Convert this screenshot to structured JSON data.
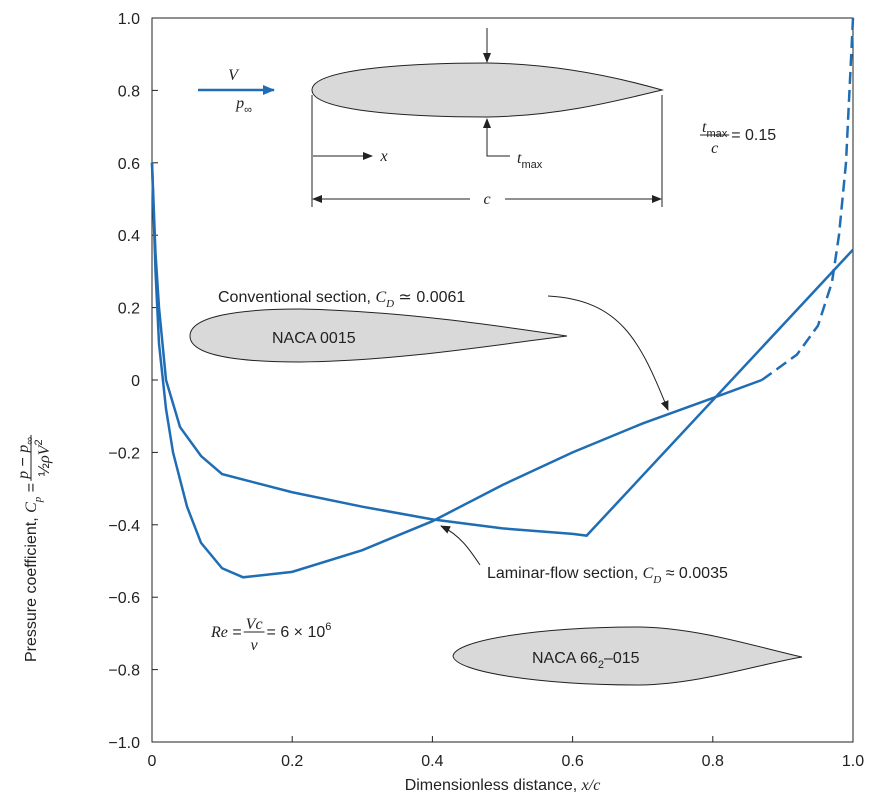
{
  "chart_data": {
    "type": "line",
    "xlabel": [
      {
        "t": "Dimensionless distance, "
      },
      {
        "t": "x/c",
        "style": "italic"
      }
    ],
    "ylabel": {
      "lhs": [
        {
          "t": "Pressure coefficient, "
        },
        {
          "t": "C",
          "style": "italic"
        },
        {
          "t": "p",
          "style": "italic sub"
        },
        {
          "t": " = "
        }
      ],
      "numerator": [
        {
          "t": "p",
          "style": "italic"
        },
        {
          "t": " − "
        },
        {
          "t": "p",
          "style": "italic"
        },
        {
          "t": "∞",
          "style": "sub"
        }
      ],
      "denominator": [
        {
          "t": "½"
        },
        {
          "t": "ρV",
          "style": "italic"
        },
        {
          "t": "2",
          "style": "sup"
        }
      ]
    },
    "xlim": [
      0,
      1
    ],
    "ylim": [
      -1,
      1
    ],
    "xticks": [
      0,
      0.2,
      0.4,
      0.6,
      0.8,
      {
        "value": 1,
        "label": "1.0"
      }
    ],
    "yticks": [
      {
        "value": 1,
        "label": "1.0"
      },
      0.8,
      0.6,
      0.4,
      0.2,
      0,
      {
        "value": -0.2,
        "label": "−0.2"
      },
      {
        "value": -0.4,
        "label": "−0.4"
      },
      {
        "value": -0.6,
        "label": "−0.6"
      },
      {
        "value": -0.8,
        "label": "−0.8"
      },
      {
        "value": -1,
        "label": "−1.0"
      }
    ],
    "series": [
      {
        "color": "#1f6db4",
        "line_style": "solid",
        "x": [
          0,
          0.005,
          0.01,
          0.02,
          0.03,
          0.05,
          0.07,
          0.1,
          0.13,
          0.2,
          0.3,
          0.4,
          0.5,
          0.6,
          0.7,
          0.8,
          0.87
        ],
        "values": [
          0.6,
          0.3,
          0.1,
          -0.08,
          -0.2,
          -0.35,
          -0.45,
          -0.52,
          -0.545,
          -0.53,
          -0.47,
          -0.39,
          -0.29,
          -0.2,
          -0.12,
          -0.05,
          0
        ]
      },
      {
        "color": "#1f6db4",
        "line_style": "dashed",
        "x": [
          0.87,
          0.92,
          0.95,
          0.97,
          0.98,
          0.99,
          1
        ],
        "values": [
          0,
          0.07,
          0.15,
          0.27,
          0.4,
          0.6,
          1
        ]
      },
      {
        "color": "#1f6db4",
        "line_style": "solid",
        "x": [
          0,
          0.005,
          0.01,
          0.02,
          0.04,
          0.07,
          0.1,
          0.2,
          0.3,
          0.4,
          0.5,
          0.6,
          0.62,
          1
        ],
        "values": [
          0.6,
          0.35,
          0.2,
          0,
          -0.13,
          -0.21,
          -0.26,
          -0.31,
          -0.35,
          -0.385,
          -0.41,
          -0.425,
          -0.43,
          0.36
        ]
      }
    ],
    "annotations": [
      [
        {
          "t": "Conventional section, "
        },
        {
          "t": "C",
          "style": "italic"
        },
        {
          "t": "D",
          "style": "italic sub"
        },
        {
          "t": " ≃ 0.0061"
        }
      ],
      [
        {
          "t": "Laminar-flow section, "
        },
        {
          "t": "C",
          "style": "italic"
        },
        {
          "t": "D",
          "style": "italic sub"
        },
        {
          "t": " ≈ 0.0035"
        }
      ],
      [
        {
          "t": "NACA 0015"
        }
      ],
      [
        {
          "t": "NACA 66"
        },
        {
          "t": "2",
          "style": "sub"
        },
        {
          "t": "–015"
        }
      ],
      [
        {
          "t": "V",
          "style": "italic"
        }
      ],
      [
        {
          "t": "p",
          "style": "italic"
        },
        {
          "t": "∞",
          "style": "sub"
        }
      ],
      [
        {
          "t": "x",
          "style": "italic"
        }
      ],
      [
        {
          "t": "t",
          "style": "italic"
        },
        {
          "t": "max",
          "style": "sub"
        }
      ],
      [
        {
          "t": "c",
          "style": "italic"
        }
      ]
    ],
    "formulas": [
      {
        "numerator": [
          {
            "t": "t",
            "style": "italic"
          },
          {
            "t": "max",
            "style": "sub"
          }
        ],
        "denominator": [
          {
            "t": "c",
            "style": "italic"
          }
        ],
        "rhs": [
          {
            "t": " = 0.15"
          }
        ]
      },
      {
        "lhs": [
          {
            "t": "Re",
            "style": "italic"
          },
          {
            "t": " = "
          }
        ],
        "numerator": [
          {
            "t": "Vc",
            "style": "italic"
          }
        ],
        "denominator": [
          {
            "t": "ν",
            "style": "italic"
          }
        ],
        "rhs": [
          {
            "t": " = 6 × 10"
          },
          {
            "t": "6",
            "style": "sup"
          }
        ]
      }
    ]
  }
}
